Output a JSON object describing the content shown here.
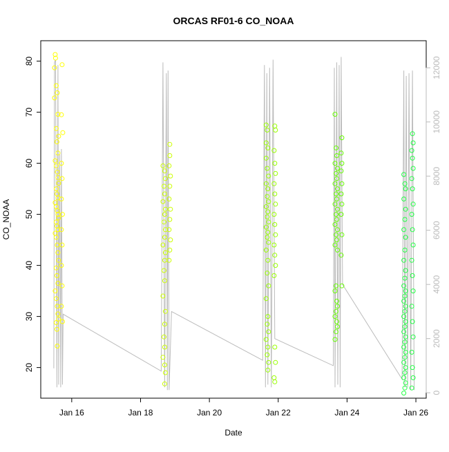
{
  "chart_data": {
    "type": "scatter",
    "title": "ORCAS RF01-6 CO_NOAA",
    "xlabel": "Date",
    "ylabel": "CO_NOAA",
    "ylim": [
      14,
      84
    ],
    "y2lim": [
      -200,
      13000
    ],
    "xlim_days": [
      15.1,
      26.3
    ],
    "x_ticks": [
      {
        "day": 16,
        "label": "Jan 16"
      },
      {
        "day": 18,
        "label": "Jan 18"
      },
      {
        "day": 20,
        "label": "Jan 20"
      },
      {
        "day": 22,
        "label": "Jan 22"
      },
      {
        "day": 24,
        "label": "Jan 24"
      },
      {
        "day": 26,
        "label": "Jan 26"
      }
    ],
    "y_ticks": [
      20,
      30,
      40,
      50,
      60,
      70,
      80
    ],
    "y2_ticks": [
      0,
      2000,
      4000,
      6000,
      8000,
      10000,
      12000
    ],
    "grid": false,
    "series": [
      {
        "color": "#ffff00",
        "values": [
          [
            15.52,
            81.3
          ],
          [
            15.53,
            80.6
          ],
          [
            15.5,
            78.7
          ],
          [
            15.55,
            75.2
          ],
          [
            15.58,
            73.8
          ],
          [
            15.5,
            72.8
          ],
          [
            15.6,
            69.6
          ],
          [
            15.55,
            66.8
          ],
          [
            15.62,
            65.3
          ],
          [
            15.57,
            64.2
          ],
          [
            15.6,
            62.0
          ],
          [
            15.52,
            60.5
          ],
          [
            15.55,
            59.5
          ],
          [
            15.58,
            58.3
          ],
          [
            15.6,
            57.2
          ],
          [
            15.62,
            56.1
          ],
          [
            15.55,
            55.0
          ],
          [
            15.57,
            54.0
          ],
          [
            15.6,
            53.2
          ],
          [
            15.52,
            52.3
          ],
          [
            15.55,
            51.5
          ],
          [
            15.58,
            50.7
          ],
          [
            15.6,
            50.0
          ],
          [
            15.62,
            49.3
          ],
          [
            15.55,
            48.5
          ],
          [
            15.57,
            47.7
          ],
          [
            15.6,
            47.0
          ],
          [
            15.52,
            46.3
          ],
          [
            15.55,
            45.5
          ],
          [
            15.58,
            44.0
          ],
          [
            15.6,
            42.5
          ],
          [
            15.62,
            41.0
          ],
          [
            15.55,
            39.5
          ],
          [
            15.57,
            38.0
          ],
          [
            15.6,
            36.5
          ],
          [
            15.52,
            35.0
          ],
          [
            15.55,
            33.5
          ],
          [
            15.58,
            32.0
          ],
          [
            15.6,
            30.5
          ],
          [
            15.62,
            29.5
          ],
          [
            15.55,
            28.8
          ],
          [
            15.57,
            27.5
          ],
          [
            15.58,
            24.2
          ],
          [
            15.72,
            79.3
          ],
          [
            15.7,
            69.5
          ],
          [
            15.74,
            66.0
          ],
          [
            15.7,
            60.0
          ],
          [
            15.72,
            57.0
          ],
          [
            15.7,
            53.0
          ],
          [
            15.73,
            50.0
          ],
          [
            15.7,
            47.0
          ],
          [
            15.72,
            44.0
          ],
          [
            15.7,
            40.0
          ],
          [
            15.72,
            36.0
          ],
          [
            15.7,
            32.0
          ],
          [
            15.73,
            29.0
          ]
        ]
      },
      {
        "color": "#ccff00",
        "values": [
          [
            18.65,
            59.5
          ],
          [
            18.7,
            58.5
          ],
          [
            18.72,
            57.0
          ],
          [
            18.68,
            55.5
          ],
          [
            18.7,
            54.0
          ],
          [
            18.65,
            52.5
          ],
          [
            18.72,
            51.0
          ],
          [
            18.7,
            50.0
          ],
          [
            18.68,
            48.5
          ],
          [
            18.72,
            47.0
          ],
          [
            18.7,
            45.5
          ],
          [
            18.65,
            44.0
          ],
          [
            18.72,
            42.5
          ],
          [
            18.7,
            41.0
          ],
          [
            18.68,
            39.0
          ],
          [
            18.7,
            37.0
          ],
          [
            18.65,
            34.0
          ],
          [
            18.72,
            31.0
          ],
          [
            18.7,
            28.5
          ],
          [
            18.68,
            26.0
          ],
          [
            18.7,
            24.0
          ],
          [
            18.65,
            22.0
          ],
          [
            18.7,
            20.5
          ],
          [
            18.72,
            19.0
          ],
          [
            18.7,
            16.8
          ],
          [
            18.85,
            63.7
          ],
          [
            18.85,
            61.5
          ],
          [
            18.83,
            59.5
          ],
          [
            18.87,
            57.5
          ],
          [
            18.85,
            55.5
          ],
          [
            18.83,
            53.0
          ],
          [
            18.87,
            51.0
          ],
          [
            18.85,
            49.0
          ],
          [
            18.83,
            47.0
          ],
          [
            18.87,
            45.0
          ],
          [
            18.85,
            43.0
          ],
          [
            18.83,
            41.0
          ]
        ]
      },
      {
        "color": "#99ff00",
        "values": [
          [
            21.65,
            67.5
          ],
          [
            21.68,
            66.5
          ],
          [
            21.65,
            64.0
          ],
          [
            21.7,
            63.0
          ],
          [
            21.65,
            61.0
          ],
          [
            21.68,
            59.0
          ],
          [
            21.72,
            57.5
          ],
          [
            21.65,
            56.0
          ],
          [
            21.7,
            55.0
          ],
          [
            21.68,
            53.5
          ],
          [
            21.72,
            52.5
          ],
          [
            21.65,
            51.5
          ],
          [
            21.7,
            50.5
          ],
          [
            21.68,
            49.5
          ],
          [
            21.72,
            48.5
          ],
          [
            21.65,
            47.5
          ],
          [
            21.7,
            46.5
          ],
          [
            21.68,
            45.5
          ],
          [
            21.72,
            44.5
          ],
          [
            21.65,
            43.0
          ],
          [
            21.7,
            41.0
          ],
          [
            21.68,
            38.5
          ],
          [
            21.72,
            36.0
          ],
          [
            21.65,
            33.5
          ],
          [
            21.7,
            30.0
          ],
          [
            21.68,
            28.5
          ],
          [
            21.72,
            27.0
          ],
          [
            21.65,
            25.5
          ],
          [
            21.7,
            24.0
          ],
          [
            21.68,
            22.5
          ],
          [
            21.72,
            21.0
          ],
          [
            21.7,
            19.5
          ],
          [
            21.9,
            67.3
          ],
          [
            21.92,
            66.5
          ],
          [
            21.88,
            62.5
          ],
          [
            21.9,
            60.0
          ],
          [
            21.92,
            58.0
          ],
          [
            21.88,
            56.0
          ],
          [
            21.9,
            54.0
          ],
          [
            21.92,
            52.0
          ],
          [
            21.88,
            50.0
          ],
          [
            21.9,
            48.0
          ],
          [
            21.92,
            46.0
          ],
          [
            21.88,
            44.0
          ],
          [
            21.9,
            42.0
          ],
          [
            21.92,
            40.0
          ],
          [
            21.88,
            38.0
          ],
          [
            21.9,
            24.0
          ],
          [
            21.92,
            21.0
          ],
          [
            21.88,
            18.0
          ],
          [
            21.9,
            17.2
          ]
        ]
      },
      {
        "color": "#66ff00",
        "values": [
          [
            23.65,
            69.6
          ],
          [
            23.68,
            63.0
          ],
          [
            23.7,
            61.5
          ],
          [
            23.65,
            60.0
          ],
          [
            23.72,
            59.0
          ],
          [
            23.68,
            58.0
          ],
          [
            23.7,
            57.0
          ],
          [
            23.65,
            56.0
          ],
          [
            23.72,
            55.0
          ],
          [
            23.68,
            54.0
          ],
          [
            23.7,
            53.0
          ],
          [
            23.65,
            52.0
          ],
          [
            23.72,
            51.0
          ],
          [
            23.68,
            50.0
          ],
          [
            23.7,
            49.0
          ],
          [
            23.65,
            48.0
          ],
          [
            23.72,
            47.0
          ],
          [
            23.68,
            46.0
          ],
          [
            23.7,
            45.0
          ],
          [
            23.65,
            44.0
          ],
          [
            23.72,
            43.0
          ],
          [
            23.68,
            36.0
          ],
          [
            23.65,
            35.0
          ],
          [
            23.7,
            33.0
          ],
          [
            23.72,
            32.0
          ],
          [
            23.68,
            31.0
          ],
          [
            23.65,
            30.0
          ],
          [
            23.7,
            29.0
          ],
          [
            23.72,
            28.0
          ],
          [
            23.68,
            27.0
          ],
          [
            23.65,
            25.5
          ],
          [
            23.85,
            65.0
          ],
          [
            23.83,
            62.0
          ],
          [
            23.85,
            60.0
          ],
          [
            23.83,
            58.5
          ],
          [
            23.85,
            56.0
          ],
          [
            23.83,
            54.0
          ],
          [
            23.85,
            52.0
          ],
          [
            23.83,
            50.0
          ],
          [
            23.85,
            46.0
          ],
          [
            23.83,
            42.0
          ],
          [
            23.85,
            36.0
          ]
        ]
      },
      {
        "color": "#22ff44",
        "values": [
          [
            25.65,
            57.8
          ],
          [
            25.68,
            56.0
          ],
          [
            25.7,
            55.0
          ],
          [
            25.65,
            53.0
          ],
          [
            25.7,
            51.0
          ],
          [
            25.68,
            49.0
          ],
          [
            25.65,
            47.0
          ],
          [
            25.7,
            45.5
          ],
          [
            25.68,
            43.0
          ],
          [
            25.65,
            41.0
          ],
          [
            25.7,
            39.0
          ],
          [
            25.68,
            37.5
          ],
          [
            25.65,
            36.0
          ],
          [
            25.7,
            35.0
          ],
          [
            25.68,
            34.0
          ],
          [
            25.65,
            33.0
          ],
          [
            25.7,
            32.0
          ],
          [
            25.68,
            31.0
          ],
          [
            25.65,
            30.0
          ],
          [
            25.7,
            29.0
          ],
          [
            25.68,
            28.0
          ],
          [
            25.65,
            27.0
          ],
          [
            25.7,
            26.0
          ],
          [
            25.68,
            25.0
          ],
          [
            25.65,
            24.0
          ],
          [
            25.7,
            23.0
          ],
          [
            25.68,
            22.0
          ],
          [
            25.65,
            21.0
          ],
          [
            25.7,
            20.0
          ],
          [
            25.68,
            19.0
          ],
          [
            25.65,
            18.0
          ],
          [
            25.7,
            17.0
          ],
          [
            25.68,
            16.0
          ],
          [
            25.65,
            15.0
          ],
          [
            25.9,
            65.8
          ],
          [
            25.92,
            64.0
          ],
          [
            25.88,
            62.5
          ],
          [
            25.9,
            61.0
          ],
          [
            25.92,
            59.0
          ],
          [
            25.88,
            57.0
          ],
          [
            25.9,
            55.0
          ],
          [
            25.92,
            52.0
          ],
          [
            25.88,
            50.0
          ],
          [
            25.9,
            47.0
          ],
          [
            25.92,
            44.0
          ],
          [
            25.88,
            41.0
          ],
          [
            25.9,
            38.0
          ],
          [
            25.92,
            35.0
          ],
          [
            25.88,
            32.0
          ],
          [
            25.9,
            29.0
          ],
          [
            25.92,
            26.0
          ],
          [
            25.88,
            23.0
          ],
          [
            25.9,
            20.0
          ],
          [
            25.92,
            18.0
          ],
          [
            25.88,
            16.0
          ]
        ]
      }
    ],
    "altitude_series": {
      "color": "#bbbbbb",
      "values": [
        [
          15.48,
          900
        ],
        [
          15.5,
          12200
        ],
        [
          15.53,
          12300
        ],
        [
          15.57,
          200
        ],
        [
          15.6,
          12100
        ],
        [
          15.62,
          300
        ],
        [
          15.65,
          8800
        ],
        [
          15.68,
          200
        ],
        [
          15.7,
          9000
        ],
        [
          15.73,
          300
        ],
        [
          15.75,
          2900
        ],
        [
          18.6,
          800
        ],
        [
          18.65,
          12200
        ],
        [
          18.7,
          200
        ],
        [
          18.75,
          11800
        ],
        [
          18.78,
          100
        ],
        [
          18.8,
          11900
        ],
        [
          18.83,
          100
        ],
        [
          18.9,
          3000
        ],
        [
          21.55,
          1200
        ],
        [
          21.6,
          12100
        ],
        [
          21.63,
          200
        ],
        [
          21.67,
          11800
        ],
        [
          21.7,
          300
        ],
        [
          21.75,
          12000
        ],
        [
          21.8,
          200
        ],
        [
          21.85,
          12300
        ],
        [
          21.9,
          2000
        ],
        [
          23.6,
          1000
        ],
        [
          23.63,
          12000
        ],
        [
          23.65,
          200
        ],
        [
          23.7,
          12200
        ],
        [
          23.73,
          300
        ],
        [
          23.77,
          12100
        ],
        [
          23.8,
          200
        ],
        [
          23.83,
          12400
        ],
        [
          23.87,
          4000
        ],
        [
          25.6,
          500
        ],
        [
          25.65,
          11900
        ],
        [
          25.68,
          200
        ],
        [
          25.72,
          11700
        ],
        [
          25.76,
          200
        ],
        [
          25.8,
          11800
        ],
        [
          25.85,
          100
        ],
        [
          25.9,
          11900
        ],
        [
          25.95,
          100
        ]
      ]
    }
  }
}
